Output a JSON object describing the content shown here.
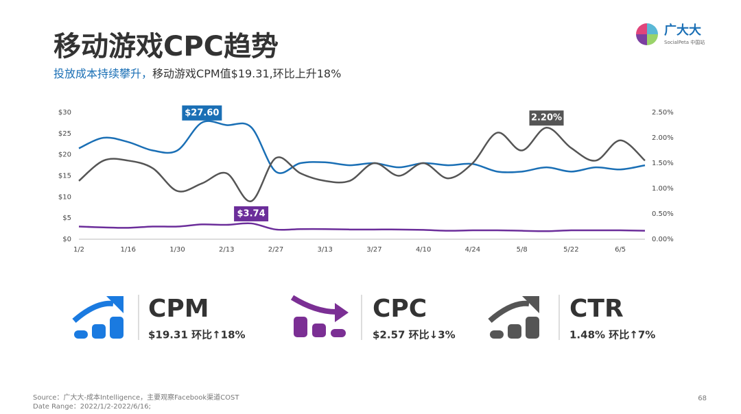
{
  "header": {
    "title": "移动游戏CPC趋势",
    "subtitle_highlight": "投放成本持续攀升，",
    "subtitle": "移动游戏CPM值$19.31,环比上升18%"
  },
  "logo": {
    "name": "广大大",
    "sub": "SocialPeta 中国站"
  },
  "chart_data": {
    "type": "line",
    "categories": [
      "1/2",
      null,
      "1/16",
      null,
      "1/30",
      null,
      "2/13",
      null,
      "2/27",
      null,
      "3/13",
      null,
      "3/27",
      null,
      "4/10",
      null,
      "4/24",
      null,
      "5/8",
      null,
      "5/22",
      null,
      "6/5",
      null
    ],
    "series": [
      {
        "name": "CPM",
        "color": "#1a6fb5",
        "values": [
          21.5,
          24,
          23,
          21,
          21,
          27.6,
          27,
          26.5,
          16,
          18,
          18.2,
          17.5,
          18,
          17,
          18,
          17.5,
          17.8,
          16,
          16,
          17,
          16,
          17,
          16.5,
          17.5
        ],
        "value_labels": [
          null,
          null,
          null,
          null,
          null,
          "$27.60",
          null,
          null,
          null,
          null,
          null,
          null,
          null,
          null,
          null,
          null,
          null,
          null,
          null,
          null,
          null,
          null,
          null,
          null
        ]
      },
      {
        "name": "CPC",
        "color": "#6b2d9a",
        "values": [
          3.0,
          2.8,
          2.7,
          3.0,
          3.0,
          3.5,
          3.4,
          3.74,
          2.3,
          2.4,
          2.4,
          2.3,
          2.3,
          2.3,
          2.2,
          2.0,
          2.1,
          2.1,
          2.0,
          1.9,
          2.1,
          2.1,
          2.1,
          2.0
        ],
        "value_labels": [
          null,
          null,
          null,
          null,
          null,
          null,
          null,
          "$3.74",
          null,
          null,
          null,
          null,
          null,
          null,
          null,
          null,
          null,
          null,
          null,
          null,
          null,
          null,
          null,
          null
        ]
      },
      {
        "name": "CTR",
        "color": "#555555",
        "axis": "y2",
        "values": [
          1.15,
          1.55,
          1.55,
          1.4,
          0.95,
          1.1,
          1.3,
          0.75,
          1.6,
          1.3,
          1.15,
          1.15,
          1.5,
          1.25,
          1.5,
          1.2,
          1.5,
          2.1,
          1.75,
          2.2,
          1.8,
          1.55,
          1.95,
          1.55
        ],
        "value_labels": [
          null,
          null,
          null,
          null,
          null,
          null,
          null,
          null,
          null,
          null,
          null,
          null,
          null,
          null,
          null,
          null,
          null,
          null,
          null,
          "2.20%",
          null,
          null,
          null,
          null
        ]
      }
    ],
    "ylim": [
      0,
      30
    ],
    "yticks": [
      {
        "value": 0,
        "label": "$0"
      },
      {
        "value": 5,
        "label": "$5"
      },
      {
        "value": 10,
        "label": "$10"
      },
      {
        "value": 15,
        "label": "$15"
      },
      {
        "value": 20,
        "label": "$20"
      },
      {
        "value": 25,
        "label": "$25"
      },
      {
        "value": 30,
        "label": "$30"
      }
    ],
    "y2lim": [
      0,
      2.5
    ],
    "y2ticks": [
      {
        "value": 0,
        "label": "0.00%"
      },
      {
        "value": 0.5,
        "label": "0.50%"
      },
      {
        "value": 1,
        "label": "1.00%"
      },
      {
        "value": 1.5,
        "label": "1.50%"
      },
      {
        "value": 2,
        "label": "2.00%"
      },
      {
        "value": 2.5,
        "label": "2.50%"
      }
    ]
  },
  "kpis": [
    {
      "name": "CPM",
      "detail": "$19.31 环比↑18%"
    },
    {
      "name": "CPC",
      "detail": "$2.57 环比↓3%"
    },
    {
      "name": "CTR",
      "detail": "1.48% 环比↑7%"
    }
  ],
  "footer": {
    "source": "Source：广大大-成本Intelligence，主要观察Facebook渠道COST",
    "date": "Date Range：2022/1/2-2022/6/16;",
    "page": "68"
  }
}
